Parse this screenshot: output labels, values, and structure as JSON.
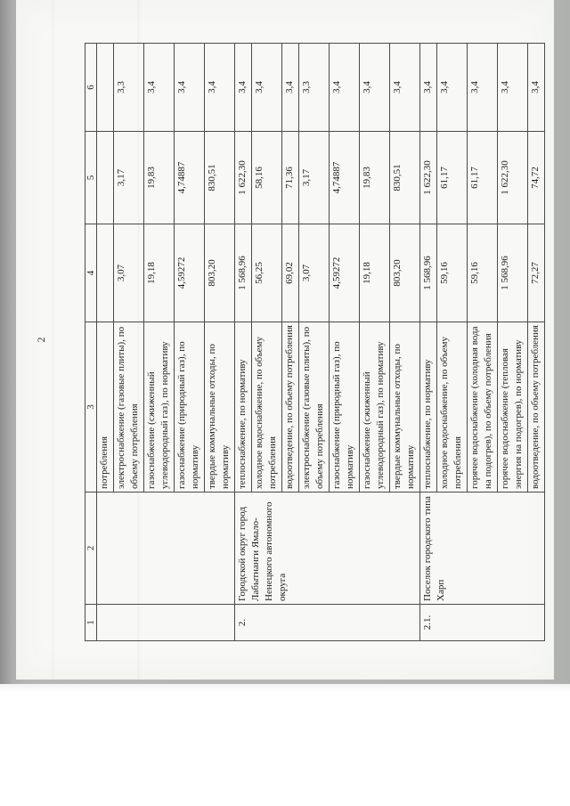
{
  "page_number": "2",
  "colors": {
    "paper": "#f8f8f6",
    "scanner_bed": "#b4b4b4",
    "table_line": "#4a4a48",
    "text": "#1d1d1d"
  },
  "table": {
    "headers": [
      "1",
      "2",
      "3",
      "4",
      "5",
      "6"
    ],
    "sections": [
      {
        "num": "",
        "municipality": "",
        "rows": [
          {
            "service": "потребления",
            "v4": "",
            "v5": "",
            "v6": ""
          },
          {
            "service": "электроснабжение (газовые плиты), по объему потребления",
            "v4": "3,07",
            "v5": "3,17",
            "v6": "3,3"
          },
          {
            "service": "газоснабжение (сжиженный углеводородный газ), по нормативу",
            "v4": "19,18",
            "v5": "19,83",
            "v6": "3,4"
          },
          {
            "service": "газоснабжение (природный газ), по нормативу",
            "v4": "4,59272",
            "v5": "4,74887",
            "v6": "3,4"
          },
          {
            "service": "твердые коммунальные отходы, по нормативу",
            "v4": "803,20",
            "v5": "830,51",
            "v6": "3,4"
          }
        ]
      },
      {
        "num": "2.",
        "municipality": "Городской округ город Лабытнанги Ямало-Ненецкого автономного округа",
        "rows": [
          {
            "service": "теплоснабжение, по нормативу",
            "v4": "1 568,96",
            "v5": "1 622,30",
            "v6": "3,4"
          },
          {
            "service": "холодное водоснабжение, по объему потребления",
            "v4": "56,25",
            "v5": "58,16",
            "v6": "3,4"
          },
          {
            "service": "водоотведение, по объему потребления",
            "v4": "69,02",
            "v5": "71,36",
            "v6": "3,4"
          },
          {
            "service": "электроснабжение (газовые плиты), по объему потребления",
            "v4": "3,07",
            "v5": "3,17",
            "v6": "3,3"
          },
          {
            "service": "газоснабжение (природный газ), по нормативу",
            "v4": "4,59272",
            "v5": "4,74887",
            "v6": "3,4"
          },
          {
            "service": "газоснабжение (сжиженный углеводородный газ), по нормативу",
            "v4": "19,18",
            "v5": "19,83",
            "v6": "3,4"
          },
          {
            "service": "твердые коммунальные отходы, по нормативу",
            "v4": "803,20",
            "v5": "830,51",
            "v6": "3,4"
          }
        ]
      },
      {
        "num": "2.1.",
        "municipality": "Поселок городского типа Харп",
        "rows": [
          {
            "service": "теплоснабжение, по нормативу",
            "v4": "1 568,96",
            "v5": "1 622,30",
            "v6": "3,4"
          },
          {
            "service": "холодное водоснабжение, по объему потребления",
            "v4": "59,16",
            "v5": "61,17",
            "v6": "3,4"
          },
          {
            "service": "горячее водоснабжение (холодная вода на подогрев), по объему потребления",
            "v4": "59,16",
            "v5": "61,17",
            "v6": "3,4"
          },
          {
            "service": "горячее водоснабжение (тепловая энергия на подогрев), по нормативу",
            "v4": "1 568,96",
            "v5": "1 622,30",
            "v6": "3,4"
          },
          {
            "service": "водоотведение, по объему потребления",
            "v4": "72,27",
            "v5": "74,72",
            "v6": "3,4"
          }
        ]
      }
    ]
  }
}
